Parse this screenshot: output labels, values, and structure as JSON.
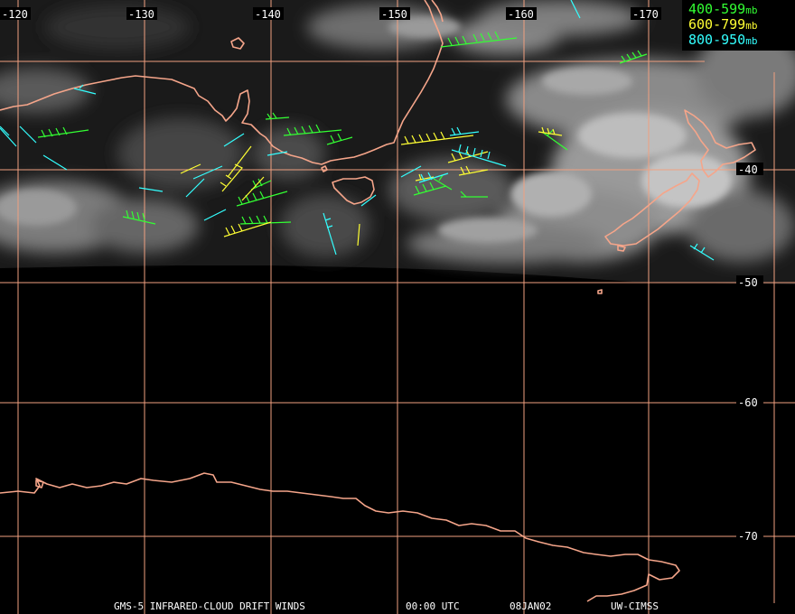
{
  "map": {
    "lon_labels": [
      "-120",
      "-130",
      "-140",
      "-150",
      "-160",
      "-170"
    ],
    "lat_labels": [
      "-40",
      "-50",
      "-60",
      "-70"
    ],
    "grid_color": "#f0a080",
    "coast_color": "#f5a58a"
  },
  "legend": [
    {
      "range": "400-599",
      "unit": "mb",
      "color": "#33ff33"
    },
    {
      "range": "600-799",
      "unit": "mb",
      "color": "#ffff33"
    },
    {
      "range": "800-950",
      "unit": "mb",
      "color": "#33ffff"
    }
  ],
  "footer": {
    "product": "GMS-5 INFRARED-CLOUD DRIFT WINDS",
    "time": "00:00 UTC",
    "date": "08JAN02",
    "source": "UW-CIMSS"
  }
}
